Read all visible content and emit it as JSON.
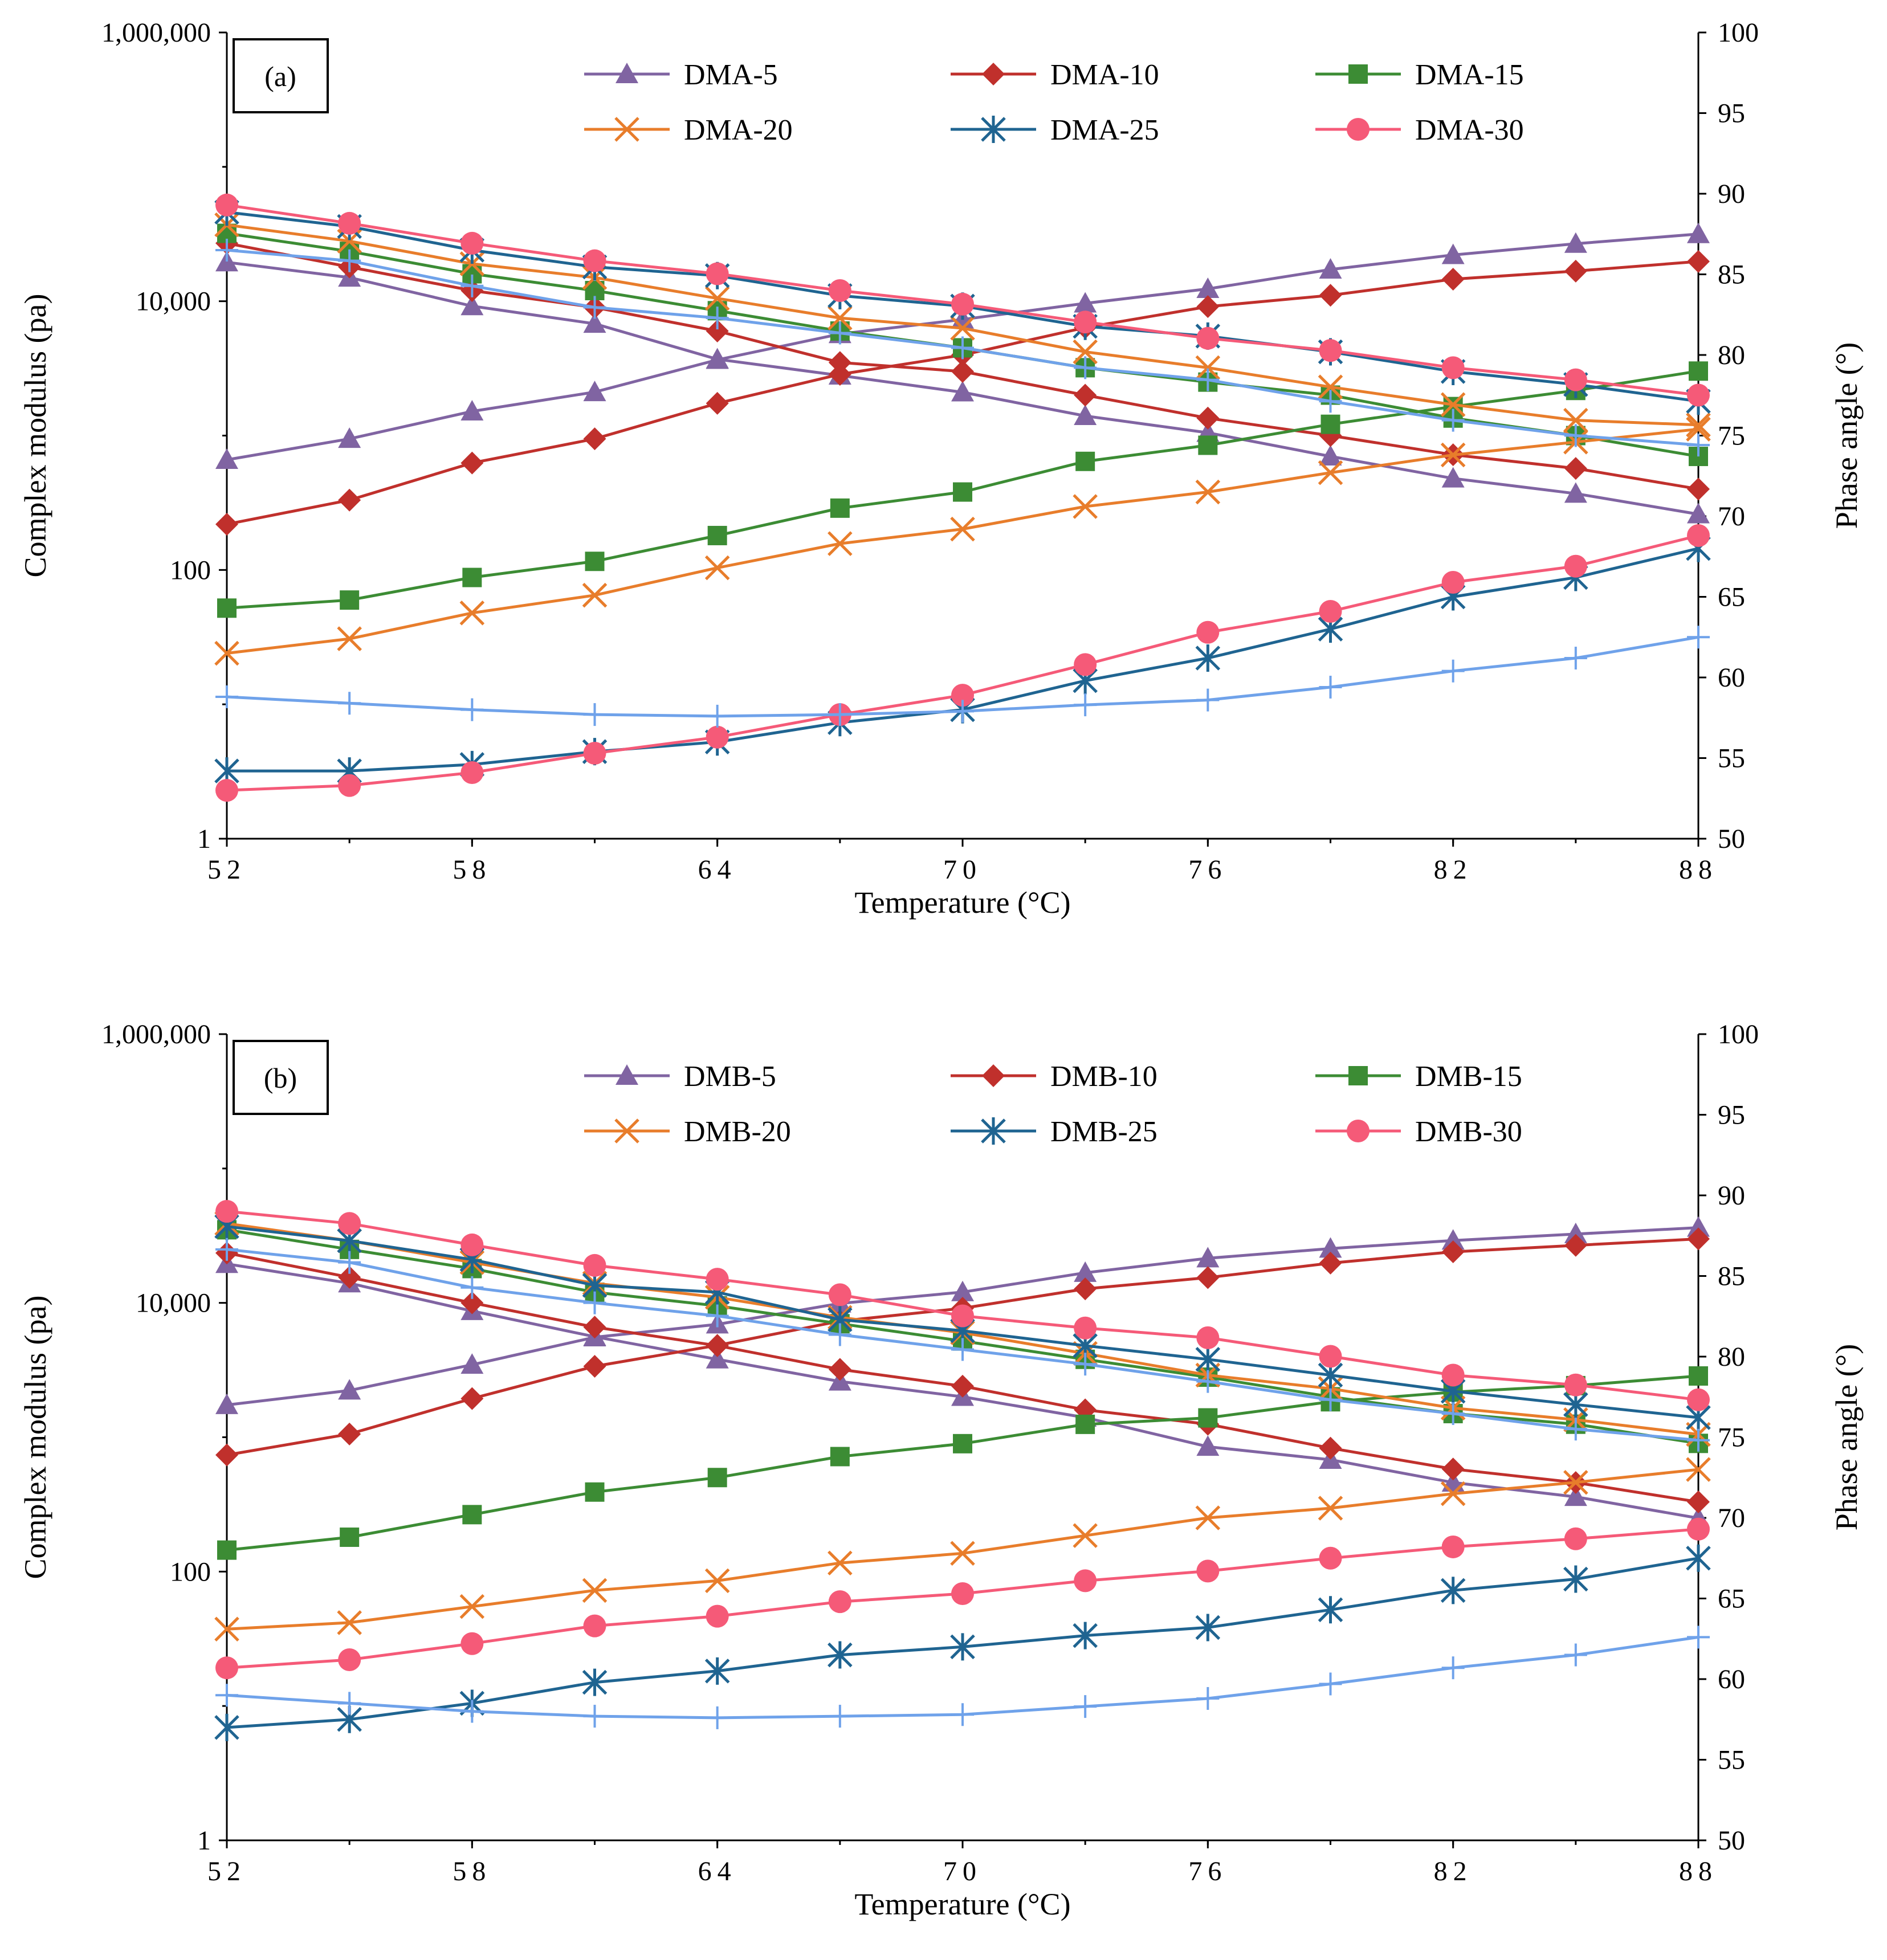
{
  "chart_data": [
    {
      "type": "line",
      "panel_label": "(a)",
      "xlabel": "Temperature (°C)",
      "ylabel_left": "Complex modulus (pa)",
      "ylabel_right": "Phase angle (°)",
      "x_ticks": [
        "52",
        "58",
        "64",
        "70",
        "76",
        "82",
        "88"
      ],
      "y_left_ticks": [
        "1",
        "100",
        "10,000",
        "1,000,000"
      ],
      "y_right_ticks": [
        "50",
        "55",
        "60",
        "65",
        "70",
        "75",
        "80",
        "85",
        "90",
        "95",
        "100"
      ],
      "y_left_scale": "log",
      "y_left_range": [
        1,
        1000000
      ],
      "y_right_range": [
        50,
        100
      ],
      "x_range": [
        52,
        88
      ],
      "x": [
        52,
        55,
        58,
        61,
        64,
        67,
        70,
        73,
        76,
        79,
        82,
        85,
        88
      ],
      "series": [
        {
          "name": "DMA-5",
          "color": "#8064A2",
          "marker": "triangle",
          "modulus": [
            19500,
            15000,
            9200,
            6800,
            3700,
            2800,
            2100,
            1400,
            1050,
            700,
            480,
            370,
            260
          ],
          "phase": [
            73.5,
            74.8,
            76.5,
            77.7,
            79.7,
            81.3,
            82.2,
            83.2,
            84.1,
            85.3,
            86.2,
            86.9,
            87.5
          ]
        },
        {
          "name": "DMA-10",
          "color": "#C0302C",
          "marker": "diamond",
          "modulus": [
            27000,
            18000,
            12000,
            9000,
            6000,
            3500,
            3000,
            2000,
            1350,
            1000,
            720,
            570,
            400
          ],
          "phase": [
            69.5,
            71.0,
            73.3,
            74.8,
            77.0,
            78.8,
            80.0,
            81.7,
            83.0,
            83.7,
            84.7,
            85.2,
            85.8
          ]
        },
        {
          "name": "DMA-15",
          "color": "#3C8C34",
          "marker": "square",
          "modulus": [
            32000,
            23500,
            16000,
            12000,
            8500,
            6000,
            4500,
            3200,
            2500,
            2000,
            1350,
            1000,
            700
          ],
          "phase": [
            64.3,
            64.8,
            66.2,
            67.2,
            68.8,
            70.5,
            71.5,
            73.4,
            74.4,
            75.7,
            76.8,
            77.8,
            79.0
          ]
        },
        {
          "name": "DMA-20",
          "color": "#E87D2B",
          "marker": "x",
          "modulus": [
            37000,
            28000,
            19000,
            15000,
            10500,
            7500,
            6300,
            4200,
            3200,
            2300,
            1700,
            1300,
            1200
          ],
          "phase": [
            61.5,
            62.4,
            64.0,
            65.1,
            66.8,
            68.3,
            69.2,
            70.6,
            71.5,
            72.7,
            73.8,
            74.6,
            75.4
          ]
        },
        {
          "name": "DMA-25",
          "color": "#1F6491",
          "marker": "star",
          "modulus": [
            46000,
            36000,
            24000,
            18000,
            15500,
            11000,
            9200,
            6500,
            5500,
            4200,
            3000,
            2400,
            1800
          ],
          "phase": [
            54.2,
            54.2,
            54.6,
            55.4,
            56.0,
            57.2,
            58.0,
            59.8,
            61.2,
            63.0,
            65.0,
            66.2,
            68.0
          ]
        },
        {
          "name": "DMA-30",
          "color": "#F55A78",
          "marker": "circle",
          "modulus": [
            52000,
            38000,
            27000,
            20000,
            16000,
            12000,
            9500,
            7000,
            5300,
            4300,
            3200,
            2600,
            2000
          ],
          "phase": [
            53.0,
            53.3,
            54.1,
            55.3,
            56.3,
            57.7,
            58.9,
            60.8,
            62.8,
            64.1,
            65.9,
            66.9,
            68.8
          ]
        },
        {
          "name": "",
          "color": "#6FA2EA",
          "marker": "plus",
          "modulus": [
            24000,
            20000,
            13000,
            9000,
            7500,
            5800,
            4500,
            3200,
            2600,
            1800,
            1300,
            1000,
            850
          ],
          "phase": [
            58.8,
            58.4,
            58.0,
            57.7,
            57.6,
            57.7,
            57.9,
            58.3,
            58.6,
            59.4,
            60.4,
            61.2,
            62.5
          ]
        }
      ]
    },
    {
      "type": "line",
      "panel_label": "(b)",
      "xlabel": "Temperature (°C)",
      "ylabel_left": "Complex modulus (pa)",
      "ylabel_right": "Phase angle (°)",
      "x_ticks": [
        "52",
        "58",
        "64",
        "70",
        "76",
        "82",
        "88"
      ],
      "y_left_ticks": [
        "1",
        "100",
        "10,000",
        "1,000,000"
      ],
      "y_right_ticks": [
        "50",
        "55",
        "60",
        "65",
        "70",
        "75",
        "80",
        "85",
        "90",
        "95",
        "100"
      ],
      "y_left_scale": "log",
      "y_left_range": [
        1,
        1000000
      ],
      "y_right_range": [
        50,
        100
      ],
      "x_range": [
        52,
        88
      ],
      "x": [
        52,
        55,
        58,
        61,
        64,
        67,
        70,
        73,
        76,
        79,
        82,
        85,
        88
      ],
      "series": [
        {
          "name": "DMB-5",
          "color": "#8064A2",
          "marker": "triangle",
          "modulus": [
            19500,
            14000,
            8700,
            5600,
            3800,
            2600,
            2000,
            1400,
            850,
            680,
            460,
            360,
            250
          ],
          "phase": [
            77.0,
            77.9,
            79.5,
            81.2,
            82.0,
            83.3,
            84.0,
            85.2,
            86.1,
            86.7,
            87.2,
            87.6,
            88.0
          ]
        },
        {
          "name": "DMB-10",
          "color": "#C0302C",
          "marker": "diamond",
          "modulus": [
            23500,
            15500,
            10000,
            6600,
            4800,
            3200,
            2400,
            1600,
            1250,
            830,
            580,
            460,
            330
          ],
          "phase": [
            73.9,
            75.2,
            77.4,
            79.4,
            80.7,
            82.2,
            83.0,
            84.2,
            84.9,
            85.8,
            86.5,
            86.9,
            87.3
          ]
        },
        {
          "name": "DMB-15",
          "color": "#3C8C34",
          "marker": "square",
          "modulus": [
            35000,
            25000,
            18000,
            12000,
            9500,
            7000,
            5200,
            3800,
            2800,
            2000,
            1500,
            1250,
            900
          ],
          "phase": [
            68.0,
            68.8,
            70.2,
            71.6,
            72.5,
            73.8,
            74.6,
            75.8,
            76.2,
            77.2,
            77.8,
            78.2,
            78.8
          ]
        },
        {
          "name": "DMB-20",
          "color": "#E87D2B",
          "marker": "x",
          "modulus": [
            39000,
            29000,
            20000,
            14000,
            11000,
            7800,
            6000,
            4200,
            2900,
            2300,
            1650,
            1350,
            1050
          ],
          "phase": [
            63.1,
            63.5,
            64.5,
            65.5,
            66.1,
            67.2,
            67.8,
            68.9,
            70.0,
            70.6,
            71.5,
            72.2,
            73.0
          ]
        },
        {
          "name": "DMB-25",
          "color": "#1F6491",
          "marker": "star",
          "modulus": [
            37000,
            29000,
            21000,
            13500,
            12000,
            7500,
            6200,
            4800,
            3800,
            2900,
            2200,
            1750,
            1400
          ],
          "phase": [
            57.0,
            57.5,
            58.5,
            59.8,
            60.5,
            61.5,
            62.0,
            62.7,
            63.2,
            64.3,
            65.5,
            66.2,
            67.5
          ]
        },
        {
          "name": "DMB-30",
          "color": "#F55A78",
          "marker": "circle",
          "modulus": [
            48000,
            39000,
            27000,
            19000,
            15000,
            11500,
            8000,
            6500,
            5500,
            4000,
            2900,
            2450,
            1900
          ],
          "phase": [
            60.7,
            61.2,
            62.2,
            63.3,
            63.9,
            64.8,
            65.3,
            66.1,
            66.7,
            67.5,
            68.2,
            68.7,
            69.3
          ]
        },
        {
          "name": "",
          "color": "#6FA2EA",
          "marker": "plus",
          "modulus": [
            25000,
            20000,
            13000,
            10000,
            8000,
            5800,
            4500,
            3500,
            2600,
            1900,
            1500,
            1150,
            950
          ],
          "phase": [
            59.0,
            58.5,
            58.0,
            57.7,
            57.6,
            57.7,
            57.8,
            58.3,
            58.8,
            59.7,
            60.7,
            61.5,
            62.6
          ]
        }
      ]
    }
  ]
}
